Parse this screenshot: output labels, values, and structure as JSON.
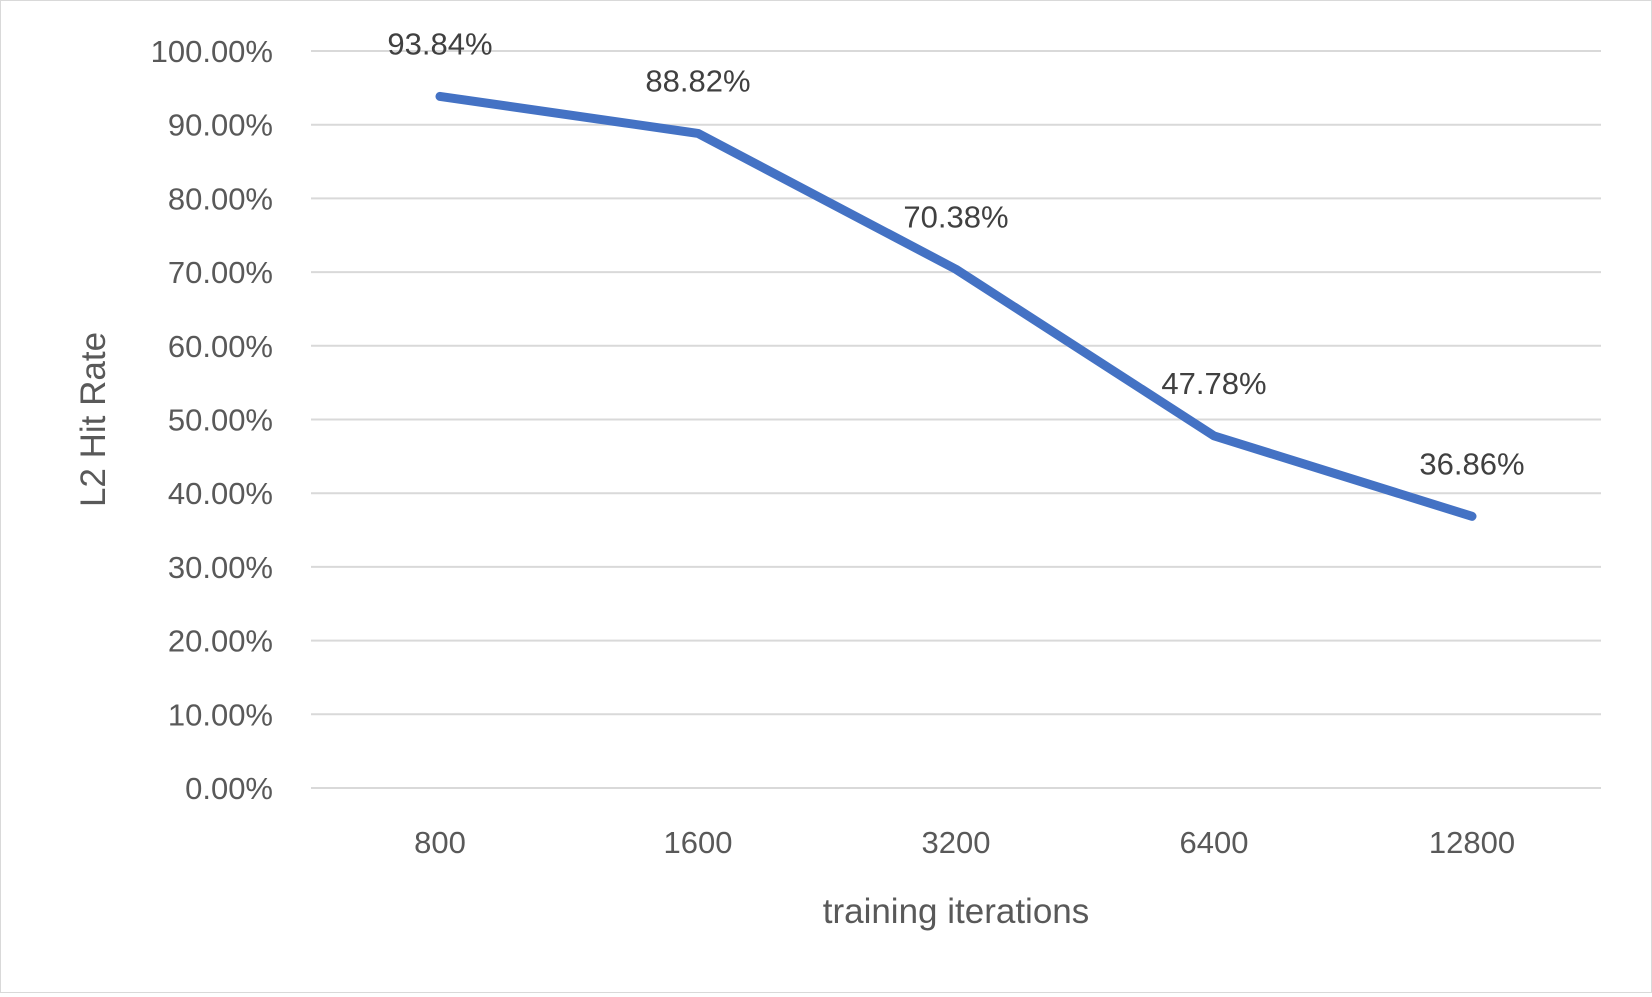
{
  "chart_data": {
    "type": "line",
    "title": "",
    "xlabel": "training iterations",
    "ylabel": "L2 Hit Rate",
    "categories": [
      "800",
      "1600",
      "3200",
      "6400",
      "12800"
    ],
    "series": [
      {
        "values": [
          93.84,
          88.82,
          70.38,
          47.78,
          36.86
        ],
        "labels": [
          "93.84%",
          "88.82%",
          "70.38%",
          "47.78%",
          "36.86%"
        ],
        "color": "#4472c4"
      }
    ],
    "ylim": [
      0,
      100
    ],
    "yticks": [
      0,
      10,
      20,
      30,
      40,
      50,
      60,
      70,
      80,
      90,
      100
    ],
    "ytick_labels": [
      "0.00%",
      "10.00%",
      "20.00%",
      "30.00%",
      "40.00%",
      "50.00%",
      "60.00%",
      "70.00%",
      "80.00%",
      "90.00%",
      "100.00%"
    ],
    "grid": true,
    "legend": "none"
  },
  "colors": {
    "series": "#4472c4",
    "grid": "#d9d9d9",
    "axis_text": "#595959",
    "data_label_text": "#404040"
  }
}
